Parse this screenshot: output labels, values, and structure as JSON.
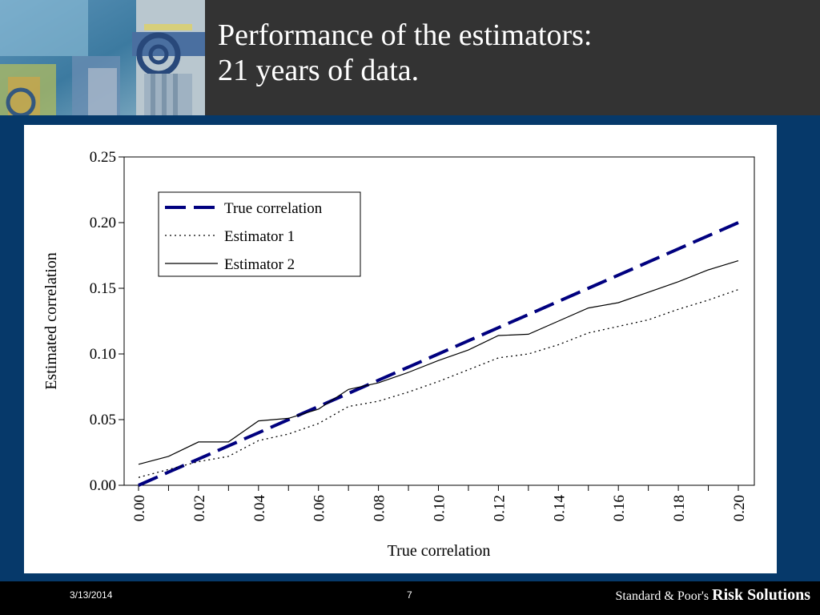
{
  "slide": {
    "title_line1": "Performance of the estimators:",
    "title_line2": "21 years of data.",
    "footer_date": "3/13/2014",
    "footer_page": "7",
    "brand_prefix": "Standard & Poor's",
    "brand_name": "Risk Solutions",
    "colors": {
      "header_bg": "#333333",
      "main_bg": "#06396a",
      "footer_bg": "#000000",
      "true_line": "#00007f"
    }
  },
  "chart_data": {
    "type": "line",
    "title": "",
    "xlabel": "True correlation",
    "ylabel": "Estimated correlation",
    "xlim": [
      0,
      0.2
    ],
    "ylim": [
      0,
      0.25
    ],
    "xticks": [
      "0.00",
      "0.02",
      "0.04",
      "0.06",
      "0.08",
      "0.10",
      "0.12",
      "0.14",
      "0.16",
      "0.18",
      "0.20"
    ],
    "yticks": [
      "0.00",
      "0.05",
      "0.10",
      "0.15",
      "0.20",
      "0.25"
    ],
    "grid": false,
    "legend_position": "top-left",
    "x": [
      0.0,
      0.01,
      0.02,
      0.03,
      0.04,
      0.05,
      0.06,
      0.07,
      0.08,
      0.09,
      0.1,
      0.11,
      0.12,
      0.13,
      0.14,
      0.15,
      0.16,
      0.17,
      0.18,
      0.19,
      0.2
    ],
    "series": [
      {
        "name": "True correlation",
        "style": "dashed-thick",
        "values": [
          0.0,
          0.01,
          0.02,
          0.03,
          0.04,
          0.05,
          0.06,
          0.07,
          0.08,
          0.09,
          0.1,
          0.11,
          0.12,
          0.13,
          0.14,
          0.15,
          0.16,
          0.17,
          0.18,
          0.19,
          0.2
        ]
      },
      {
        "name": "Estimator 1",
        "style": "dotted",
        "values": [
          0.006,
          0.012,
          0.018,
          0.022,
          0.034,
          0.039,
          0.047,
          0.06,
          0.064,
          0.071,
          0.079,
          0.088,
          0.097,
          0.1,
          0.107,
          0.116,
          0.121,
          0.126,
          0.134,
          0.141,
          0.149
        ]
      },
      {
        "name": "Estimator 2",
        "style": "solid",
        "values": [
          0.016,
          0.022,
          0.033,
          0.033,
          0.049,
          0.051,
          0.058,
          0.073,
          0.078,
          0.086,
          0.095,
          0.103,
          0.114,
          0.115,
          0.125,
          0.135,
          0.139,
          0.147,
          0.155,
          0.164,
          0.171
        ]
      }
    ]
  }
}
